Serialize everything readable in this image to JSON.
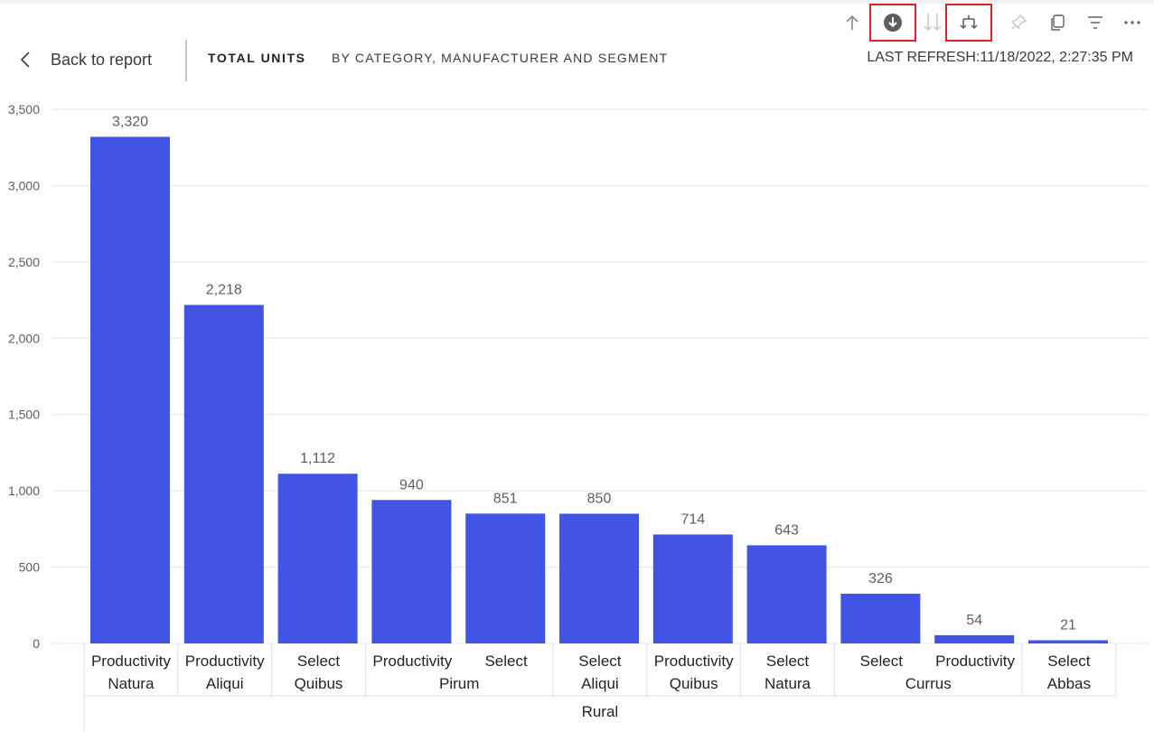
{
  "header": {
    "back_label": "Back to report",
    "title": "TOTAL UNITS",
    "subtitle": "BY CATEGORY, MANUFACTURER AND SEGMENT",
    "last_refresh": "LAST REFRESH:11/18/2022, 2:27:35 PM"
  },
  "toolbar": {
    "buttons": [
      {
        "icon": "drill-up-icon",
        "highlighted": false
      },
      {
        "icon": "drill-down-on-icon",
        "highlighted": true
      },
      {
        "icon": "go-to-next-level-icon",
        "highlighted": false
      },
      {
        "icon": "expand-next-level-icon",
        "highlighted": true
      },
      {
        "icon": "pin-icon",
        "highlighted": false
      },
      {
        "icon": "copy-icon",
        "highlighted": false
      },
      {
        "icon": "filter-icon",
        "highlighted": false
      },
      {
        "icon": "more-options-icon",
        "highlighted": false
      }
    ]
  },
  "colors": {
    "bar": "#4154e4",
    "highlight": "#e0202a",
    "grid": "#e6e6e6",
    "axis_text": "#605e5c"
  },
  "chart_data": {
    "type": "bar",
    "title": "",
    "xlabel": "",
    "ylabel": "",
    "ylim": [
      0,
      3500
    ],
    "yticks": [
      0,
      500,
      1000,
      1500,
      2000,
      2500,
      3000,
      3500
    ],
    "ytick_labels": [
      "0",
      "500",
      "1,000",
      "1,500",
      "2,000",
      "2,500",
      "3,000",
      "3,500"
    ],
    "grid": true,
    "categories": [
      {
        "segment": "Productivity",
        "manufacturer": "Natura",
        "category": "Rural"
      },
      {
        "segment": "Productivity",
        "manufacturer": "Aliqui",
        "category": "Rural"
      },
      {
        "segment": "Select",
        "manufacturer": "Quibus",
        "category": "Rural"
      },
      {
        "segment": "Productivity",
        "manufacturer": "Pirum",
        "category": "Rural"
      },
      {
        "segment": "Select",
        "manufacturer": "Pirum",
        "category": "Rural"
      },
      {
        "segment": "Select",
        "manufacturer": "Aliqui",
        "category": "Rural"
      },
      {
        "segment": "Productivity",
        "manufacturer": "Quibus",
        "category": "Rural"
      },
      {
        "segment": "Select",
        "manufacturer": "Natura",
        "category": "Rural"
      },
      {
        "segment": "Select",
        "manufacturer": "Currus",
        "category": "Rural"
      },
      {
        "segment": "Productivity",
        "manufacturer": "Currus",
        "category": "Rural"
      },
      {
        "segment": "Select",
        "manufacturer": "Abbas",
        "category": "Rural"
      }
    ],
    "values": [
      3320,
      2218,
      1112,
      940,
      851,
      850,
      714,
      643,
      326,
      54,
      21
    ],
    "data_labels": [
      "3,320",
      "2,218",
      "1,112",
      "940",
      "851",
      "850",
      "714",
      "643",
      "326",
      "54",
      "21"
    ],
    "manufacturer_groups": [
      {
        "label": "Natura",
        "start": 0,
        "end": 0
      },
      {
        "label": "Aliqui",
        "start": 1,
        "end": 1
      },
      {
        "label": "Quibus",
        "start": 2,
        "end": 2
      },
      {
        "label": "Pirum",
        "start": 3,
        "end": 4
      },
      {
        "label": "Aliqui",
        "start": 5,
        "end": 5
      },
      {
        "label": "Quibus",
        "start": 6,
        "end": 6
      },
      {
        "label": "Natura",
        "start": 7,
        "end": 7
      },
      {
        "label": "Currus",
        "start": 8,
        "end": 9
      },
      {
        "label": "Abbas",
        "start": 10,
        "end": 10
      }
    ],
    "category_groups": [
      {
        "label": "Rural",
        "start": 0,
        "end": 10
      }
    ]
  }
}
